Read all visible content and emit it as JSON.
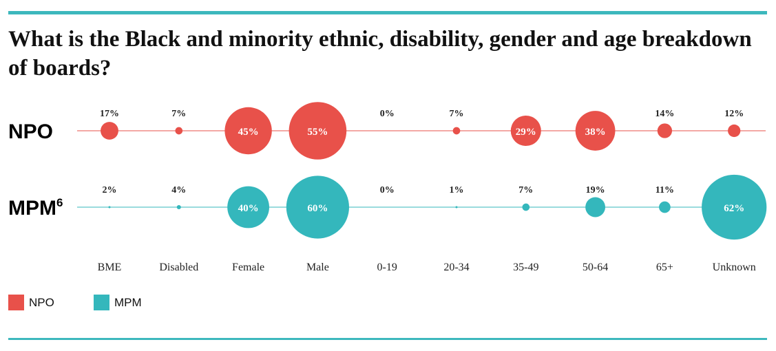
{
  "title": "What is the Black and minority ethnic, disability, gender and age breakdown of boards?",
  "colors": {
    "NPO": "#e8514a",
    "MPM": "#34b7bc",
    "rule": "#3db8bd"
  },
  "chart_data": {
    "type": "scatter",
    "subtype": "bubble",
    "title": "What is the Black and minority ethnic, disability, gender and age breakdown of boards?",
    "categories": [
      "BME",
      "Disabled",
      "Female",
      "Male",
      "0-19",
      "20-34",
      "35-49",
      "50-64",
      "65+",
      "Unknown"
    ],
    "series": [
      {
        "name": "NPO",
        "label": "NPO",
        "superscript": "",
        "values": [
          17,
          7,
          45,
          55,
          0,
          7,
          29,
          38,
          14,
          12
        ]
      },
      {
        "name": "MPM",
        "label": "MPM",
        "superscript": "6",
        "values": [
          2,
          4,
          40,
          60,
          0,
          1,
          7,
          19,
          11,
          62
        ]
      }
    ],
    "value_suffix": "%",
    "legend": {
      "position": "bottom-left",
      "entries": [
        "NPO",
        "MPM"
      ]
    }
  }
}
